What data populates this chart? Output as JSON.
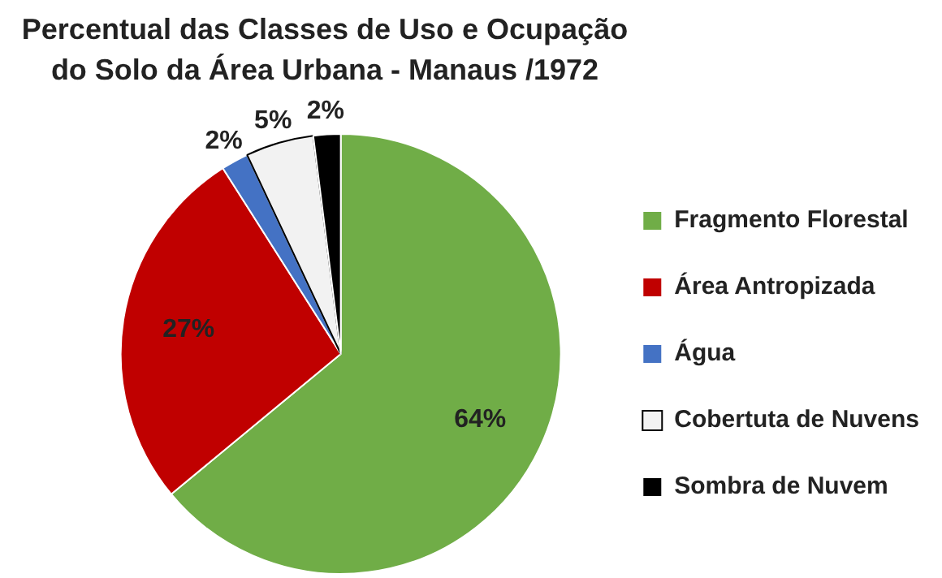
{
  "chart_data": {
    "type": "pie",
    "title": "Percentual das Classes de Uso e Ocupação do Solo da Área Urbana - Manaus /1972",
    "categories": [
      "Fragmento Florestal",
      "Área Antropizada",
      "Água",
      "Cobertuta de Nuvens",
      "Sombra de Nuvem"
    ],
    "values": [
      64,
      27,
      2,
      5,
      2
    ],
    "colors": [
      "#70ad47",
      "#c00000",
      "#4472c4",
      "#f2f2f2",
      "#000000"
    ],
    "value_labels": [
      "64%",
      "27%",
      "2%",
      "5%",
      "2%"
    ],
    "legend": "right"
  }
}
